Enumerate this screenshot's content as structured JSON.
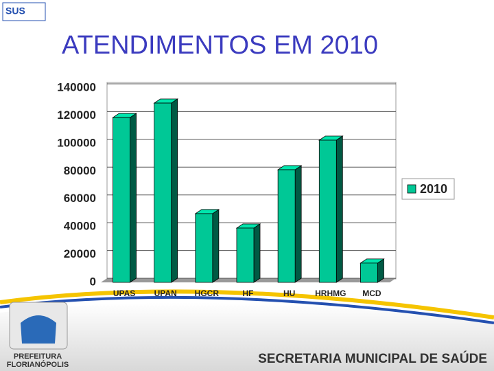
{
  "chart_data": {
    "type": "bar",
    "title": "ATENDIMENTOS EM 2010",
    "categories": [
      "UPAS",
      "UPAN",
      "HGCR",
      "HF",
      "HU",
      "HRHMG",
      "MCD"
    ],
    "series": [
      {
        "name": "2010",
        "color": "#00c896",
        "values": [
          118700,
          129100,
          49500,
          39100,
          81100,
          102400,
          13900
        ]
      }
    ],
    "ylim": [
      0,
      140000
    ],
    "yticks": [
      0,
      20000,
      40000,
      60000,
      80000,
      100000,
      120000,
      140000
    ],
    "grid": true,
    "legend": "right"
  },
  "header": {
    "logo": "SUS"
  },
  "footer": {
    "secretaria": "SECRETARIA MUNICIPAL DE SAÚDE",
    "prefeitura": "PREFEITURA",
    "city": "FLORIANÓPOLIS"
  }
}
